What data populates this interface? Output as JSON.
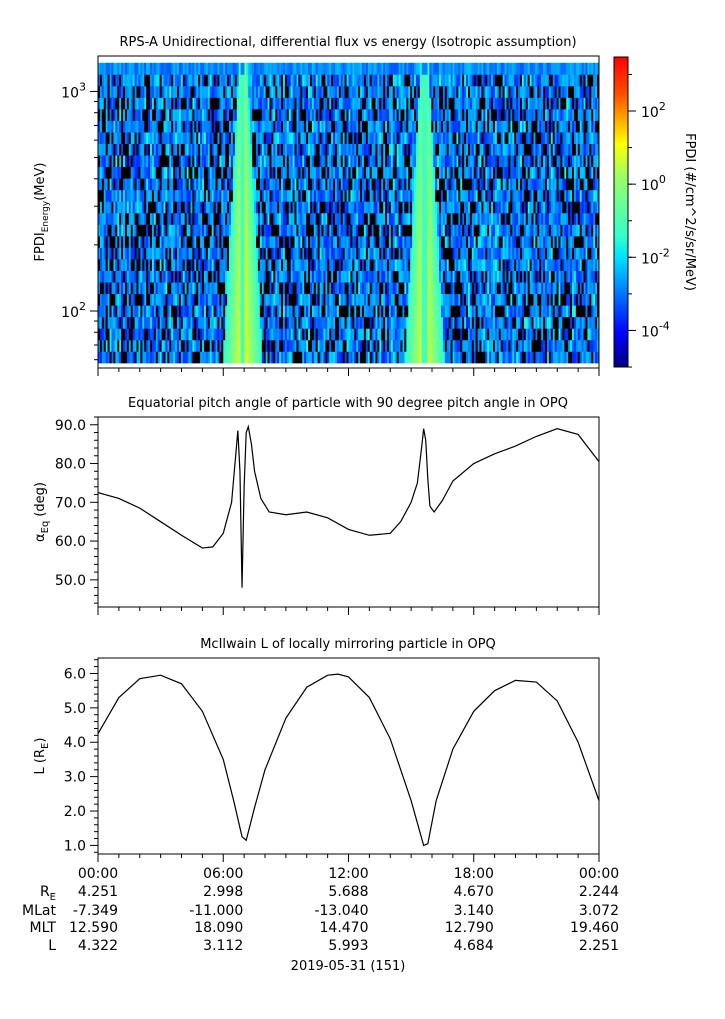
{
  "chart_data": [
    {
      "type": "heatmap",
      "title": "RPS-A Unidirectional, differential flux vs energy (Isotropic assumption)",
      "ylabel_main": "FPDI",
      "ylabel_sub": "Energy",
      "ylabel_unit": "(MeV)",
      "yscale": "log",
      "ylim": [
        55,
        1450
      ],
      "energy_min": 58,
      "energy_max": 1350,
      "yticks": [
        {
          "value": 100,
          "base": "10",
          "exp": "2"
        },
        {
          "value": 1000,
          "base": "10",
          "exp": "3"
        }
      ],
      "colorbar": {
        "label": "FPDI (#/cm^2/s/sr/MeV)",
        "scale": "log",
        "range": [
          1e-05,
          3000
        ],
        "ticks": [
          {
            "value": 100,
            "base": "10",
            "exp": "2"
          },
          {
            "value": 1,
            "base": "10",
            "exp": "0"
          },
          {
            "value": 0.01,
            "base": "10",
            "exp": "-2"
          },
          {
            "value": 0.0001,
            "base": "10",
            "exp": "-4"
          }
        ]
      },
      "flux_peaks": [
        {
          "time_h": 6.95,
          "value": 15
        },
        {
          "time_h": 15.65,
          "value": 15
        }
      ],
      "background_level": 0.001
    },
    {
      "type": "line",
      "title": "Equatorial pitch angle of particle with 90 degree pitch angle in OPQ",
      "ylabel_main": "α",
      "ylabel_sub": "Eq",
      "ylabel_unit": "(deg)",
      "ylim": [
        43,
        92
      ],
      "yticks": [
        50,
        60,
        70,
        80,
        90
      ],
      "series": [
        {
          "x": [
            0,
            1,
            2,
            3,
            4,
            5,
            5.5,
            6,
            6.4,
            6.7,
            6.8,
            6.9,
            7.0,
            7.1,
            7.2,
            7.35,
            7.5,
            7.8,
            8.2,
            9,
            10,
            11,
            12,
            13,
            14,
            14.5,
            15,
            15.3,
            15.5,
            15.6,
            15.7,
            15.8,
            15.9,
            16.1,
            16.5,
            17,
            18,
            19,
            20,
            21,
            22,
            23,
            24
          ],
          "y": [
            72.5,
            71,
            68.5,
            65,
            61.5,
            58.2,
            58.5,
            62,
            70,
            88.5,
            78,
            48,
            74,
            88,
            89.5,
            85,
            78,
            71,
            67.5,
            66.8,
            67.5,
            66,
            63,
            61.5,
            62,
            65,
            70,
            75,
            84,
            89,
            86,
            76,
            69,
            67.5,
            70.5,
            75.5,
            80,
            82.5,
            84.5,
            87,
            89,
            87.5,
            80.5
          ]
        }
      ]
    },
    {
      "type": "line",
      "title": "McIlwain L of locally mirroring particle in OPQ",
      "ylabel_main": "L (R",
      "ylabel_sub": "E",
      "ylabel_unit": ")",
      "ylim": [
        0.75,
        6.45
      ],
      "yticks": [
        1,
        2,
        3,
        4,
        5,
        6
      ],
      "series": [
        {
          "x": [
            0,
            1,
            2,
            3,
            4,
            5,
            6,
            6.5,
            6.9,
            7.1,
            7.5,
            8,
            9,
            10,
            11,
            11.5,
            12,
            13,
            14,
            15,
            15.6,
            15.8,
            16.2,
            17,
            18,
            19,
            20,
            21,
            22,
            23,
            24
          ],
          "y": [
            4.25,
            5.3,
            5.85,
            5.95,
            5.7,
            4.9,
            3.5,
            2.3,
            1.25,
            1.15,
            2.1,
            3.2,
            4.7,
            5.6,
            5.95,
            5.98,
            5.9,
            5.3,
            4.1,
            2.3,
            1.0,
            1.05,
            2.3,
            3.8,
            4.9,
            5.5,
            5.8,
            5.75,
            5.2,
            4.0,
            2.3
          ]
        }
      ]
    }
  ],
  "time_axis": {
    "range_hours": [
      0,
      24
    ],
    "ticks": [
      {
        "hour": 0,
        "label": "00:00"
      },
      {
        "hour": 6,
        "label": "06:00"
      },
      {
        "hour": 12,
        "label": "12:00"
      },
      {
        "hour": 18,
        "label": "18:00"
      },
      {
        "hour": 24,
        "label": "00:00"
      }
    ],
    "minor_step_hours": 1
  },
  "ephemeris": {
    "labels": [
      {
        "main": "R",
        "sub": "E"
      },
      {
        "main": "MLat",
        "sub": ""
      },
      {
        "main": "MLT",
        "sub": ""
      },
      {
        "main": "L",
        "sub": ""
      }
    ],
    "rows": [
      [
        "4.251",
        "2.998",
        "5.688",
        "4.670",
        "2.244"
      ],
      [
        "-7.349",
        "-11.000",
        "-13.040",
        "3.140",
        "3.072"
      ],
      [
        "12.590",
        "18.090",
        "14.470",
        "12.790",
        "19.460"
      ],
      [
        "4.322",
        "3.112",
        "5.993",
        "4.684",
        "2.251"
      ]
    ]
  },
  "date_label": "2019-05-31 (151)"
}
